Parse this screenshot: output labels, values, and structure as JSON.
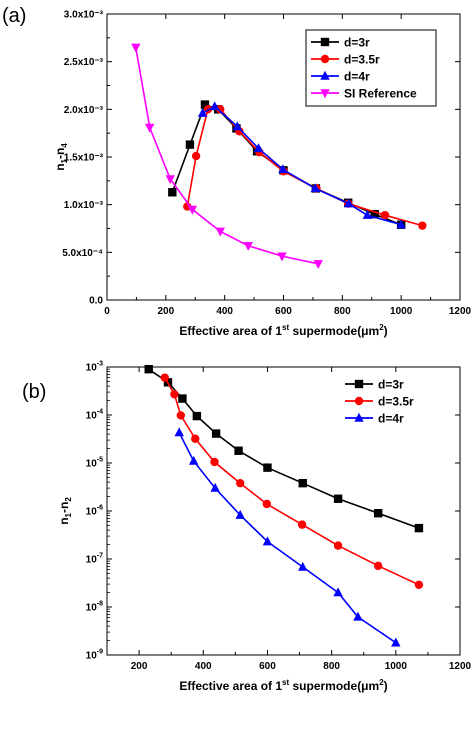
{
  "chart_data": [
    {
      "panel_label": "(a)",
      "type": "line",
      "xlabel": {
        "main": "Effective area of 1",
        "sup": "st",
        "rest": " supermode(μm",
        "sup2": "2",
        "end": ")"
      },
      "ylabel": {
        "base": "n",
        "sub1": "1",
        "mid": "-n",
        "sub2": "4"
      },
      "xlim": [
        0,
        1200
      ],
      "ylim": [
        0,
        0.003
      ],
      "x_ticks": [
        0,
        200,
        400,
        600,
        800,
        1000,
        1200
      ],
      "x_tick_labels": [
        "0",
        "200",
        "400",
        "600",
        "800",
        "1000",
        "1200"
      ],
      "y_ticks": [
        0,
        0.0005,
        0.001,
        0.0015,
        0.002,
        0.0025,
        0.003
      ],
      "y_tick_labels": [
        "0.0",
        "5.0x10⁻⁴",
        "1.0x10⁻³",
        "1.5x10⁻³",
        "2.0x10⁻³",
        "2.5x10⁻³",
        "3.0x10⁻³"
      ],
      "legend_position": "top-right",
      "series": [
        {
          "name": "d=3r",
          "color": "#000000",
          "marker": "square",
          "x": [
            222,
            282,
            333,
            378,
            440,
            510,
            600,
            710,
            820,
            910,
            1000
          ],
          "y": [
            0.00113,
            0.00163,
            0.00205,
            0.002,
            0.0018,
            0.00156,
            0.00136,
            0.00117,
            0.00102,
            0.0009,
            0.00079
          ]
        },
        {
          "name": "d=3.5r",
          "color": "#ff0000",
          "marker": "circle",
          "x": [
            273,
            303,
            343,
            385,
            450,
            518,
            600,
            712,
            820,
            945,
            1072
          ],
          "y": [
            0.00098,
            0.00151,
            0.002,
            0.002,
            0.00177,
            0.00155,
            0.00135,
            0.00117,
            0.00101,
            0.00089,
            0.00078
          ]
        },
        {
          "name": "d=4r",
          "color": "#0000ff",
          "marker": "triangle-up",
          "x": [
            325,
            366,
            443,
            515,
            598,
            708,
            822,
            885,
            1000
          ],
          "y": [
            0.00196,
            0.00203,
            0.00182,
            0.00159,
            0.00137,
            0.00117,
            0.00101,
            0.00089,
            0.00079
          ]
        },
        {
          "name": "SI Reference",
          "color": "#ff00ff",
          "marker": "triangle-down",
          "x": [
            98,
            145,
            215,
            290,
            385,
            480,
            595,
            718
          ],
          "y": [
            0.00265,
            0.00181,
            0.00127,
            0.00095,
            0.00072,
            0.00057,
            0.00046,
            0.00038
          ]
        }
      ]
    },
    {
      "panel_label": "(b)",
      "type": "line",
      "y_scale": "log",
      "xlabel": {
        "main": "Effective area of 1",
        "sup": "st",
        "rest": " supermode(μm",
        "sup2": "2",
        "end": ")"
      },
      "ylabel": {
        "base": "n",
        "sub1": "1",
        "mid": "-n",
        "sub2": "2"
      },
      "xlim": [
        100,
        1200
      ],
      "ylim": [
        1e-09,
        0.001
      ],
      "x_ticks": [
        200,
        400,
        600,
        800,
        1000,
        1200
      ],
      "x_tick_labels": [
        "200",
        "400",
        "600",
        "800",
        "1000",
        "1200"
      ],
      "y_ticks": [
        1e-09,
        1e-08,
        1e-07,
        1e-06,
        1e-05,
        0.0001,
        0.001
      ],
      "y_tick_labels": [
        {
          "base": "10",
          "exp": "-9"
        },
        {
          "base": "10",
          "exp": "-8"
        },
        {
          "base": "10",
          "exp": "-7"
        },
        {
          "base": "10",
          "exp": "-6"
        },
        {
          "base": "10",
          "exp": "-5"
        },
        {
          "base": "10",
          "exp": "-4"
        },
        {
          "base": "10",
          "exp": "-3"
        }
      ],
      "legend_position": "top-right",
      "series": [
        {
          "name": "d=3r",
          "color": "#000000",
          "marker": "square",
          "x": [
            230,
            290,
            335,
            380,
            440,
            510,
            600,
            710,
            820,
            945,
            1072
          ],
          "y": [
            0.0009,
            0.00048,
            0.00022,
            9.5e-05,
            4.1e-05,
            1.8e-05,
            8e-06,
            3.8e-06,
            1.8e-06,
            9e-07,
            4.4e-07
          ]
        },
        {
          "name": "d=3.5r",
          "color": "#ff0000",
          "marker": "circle",
          "x": [
            280,
            310,
            330,
            375,
            435,
            515,
            598,
            708,
            820,
            945,
            1072
          ],
          "y": [
            0.0006,
            0.00027,
            9.8e-05,
            3.2e-05,
            1.05e-05,
            3.8e-06,
            1.4e-06,
            5.2e-07,
            1.9e-07,
            7.2e-08,
            2.9e-08
          ]
        },
        {
          "name": "d=4r",
          "color": "#0000ff",
          "marker": "triangle-up",
          "x": [
            325,
            370,
            437,
            515,
            600,
            710,
            820,
            882,
            1000
          ],
          "y": [
            4.3e-05,
            1.1e-05,
            3e-06,
            8.2e-07,
            2.3e-07,
            6.8e-08,
            2e-08,
            6.2e-09,
            1.8e-09
          ]
        }
      ]
    }
  ]
}
